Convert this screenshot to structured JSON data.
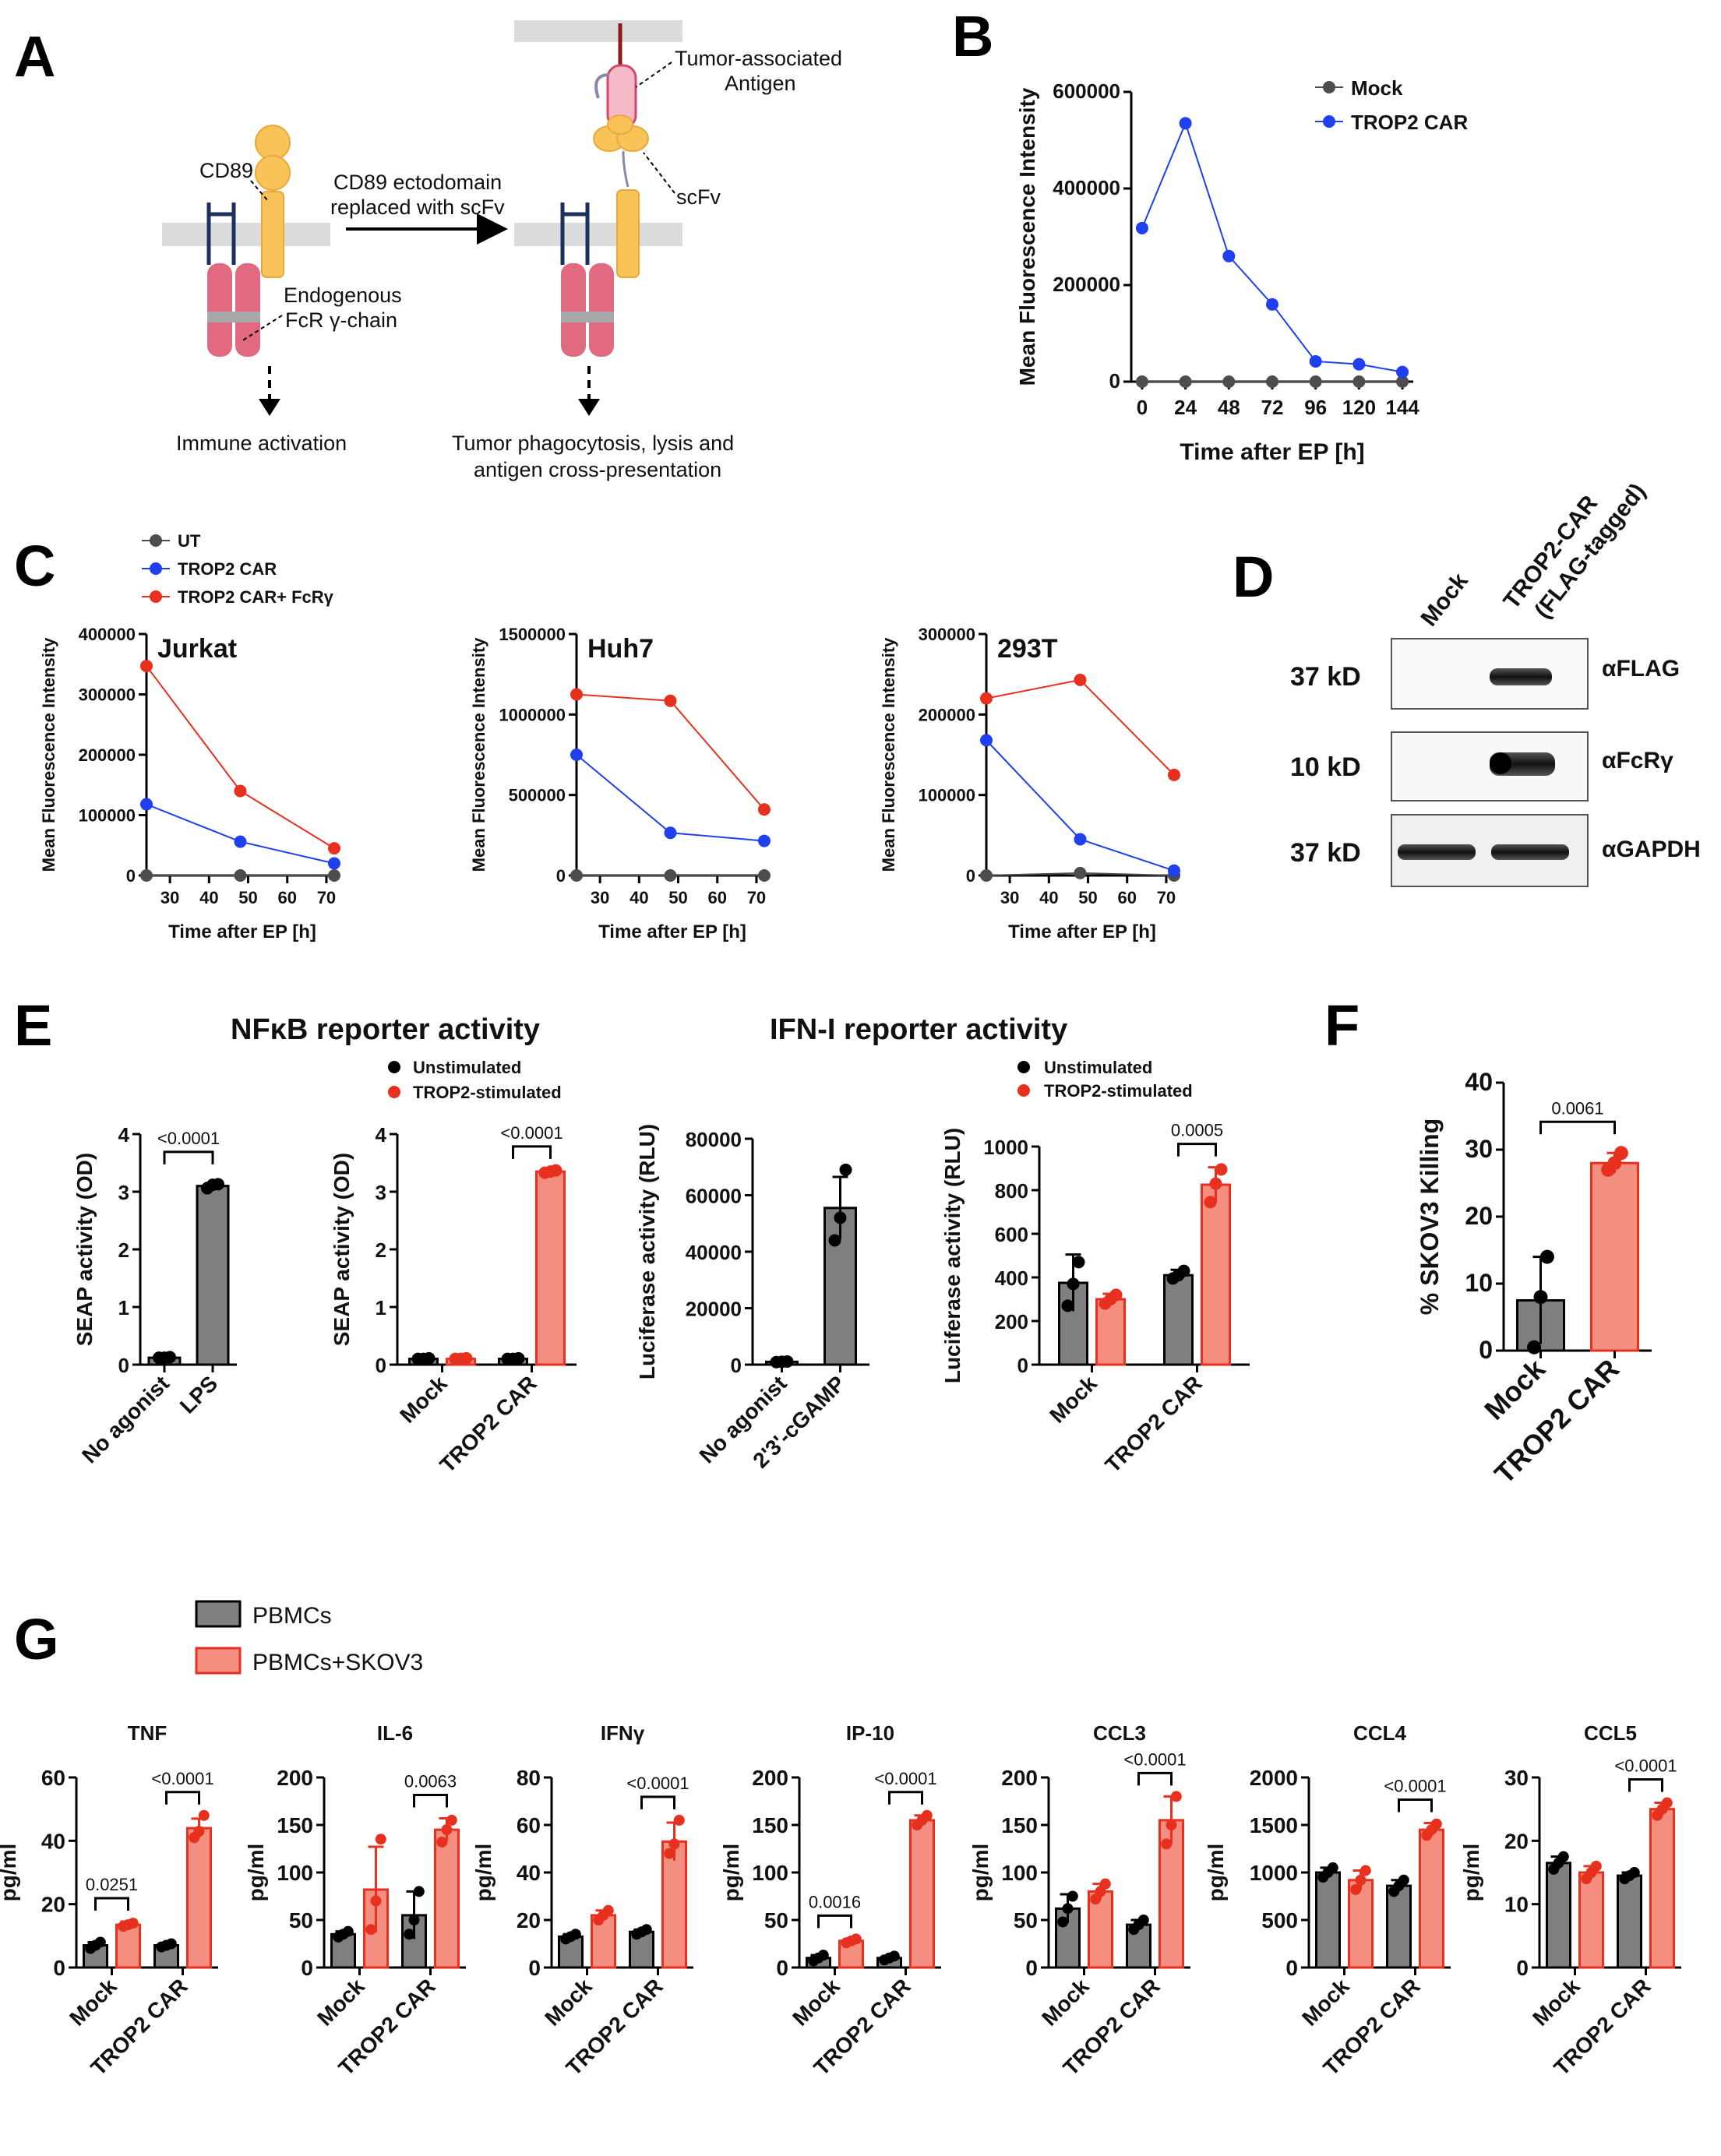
{
  "colors": {
    "mock": "#4d4d4d",
    "car": "#1f3ff0",
    "car_fc": "#e8301f",
    "grey_bar": "#7f7f7f",
    "red_bar": "#f48e80",
    "red_edge": "#e8301f",
    "ut": "#4d4d4d",
    "black": "#000000"
  },
  "panel_labels": [
    "A",
    "B",
    "C",
    "D",
    "E",
    "F",
    "G"
  ],
  "panel_a": {
    "tumor_antigen_label": "Tumor-associated\nAntigen",
    "cd89_label": "CD89",
    "scfv_label": "scFv",
    "arrow_label": "CD89 ectodomain\nreplaced with scFv",
    "fcr_label": "Endogenous\nFcR γ-chain",
    "left_outcome": "Immune activation",
    "right_outcome": "Tumor phagocytosis, lysis and\nantigen cross-presentation"
  },
  "chart_data": [
    {
      "id": "B",
      "type": "line",
      "title": "",
      "xlabel": "Time after EP [h]",
      "ylabel": "Mean Fluorescence Intensity",
      "x": [
        0,
        24,
        48,
        72,
        96,
        120,
        144
      ],
      "xticks": [
        "0",
        "24",
        "48",
        "72",
        "96",
        "120",
        "144"
      ],
      "yticks": [
        0,
        200000,
        400000,
        600000
      ],
      "ylim": [
        0,
        600000
      ],
      "series": [
        {
          "name": "Mock",
          "color_key": "mock",
          "values": [
            0,
            0,
            0,
            0,
            0,
            0,
            0
          ]
        },
        {
          "name": "TROP2 CAR",
          "color_key": "car",
          "values": [
            318000,
            535000,
            260000,
            160000,
            42000,
            36000,
            20000
          ]
        }
      ]
    },
    {
      "id": "C-Jurkat",
      "type": "line",
      "title": "Jurkat",
      "xlabel": "Time after EP [h]",
      "ylabel": "Mean Fluorescence Intensity",
      "x": [
        24,
        48,
        72
      ],
      "xlim": [
        24,
        73
      ],
      "xticks": [
        30,
        40,
        50,
        60,
        70
      ],
      "yticks": [
        0,
        100000,
        200000,
        300000,
        400000
      ],
      "ylim": [
        0,
        400000
      ],
      "series": [
        {
          "name": "UT",
          "color_key": "ut",
          "values": [
            0,
            0,
            0
          ]
        },
        {
          "name": "TROP2 CAR",
          "color_key": "car",
          "values": [
            118000,
            56000,
            20000
          ]
        },
        {
          "name": "TROP2 CAR+ FcRγ",
          "color_key": "car_fc",
          "values": [
            347000,
            140000,
            45000
          ]
        }
      ]
    },
    {
      "id": "C-Huh7",
      "type": "line",
      "title": "Huh7",
      "xlabel": "Time after EP [h]",
      "ylabel": "Mean Fluorescence Intensity",
      "x": [
        24,
        48,
        72
      ],
      "xlim": [
        24,
        73
      ],
      "xticks": [
        30,
        40,
        50,
        60,
        70
      ],
      "yticks": [
        0,
        500000,
        1000000,
        1500000
      ],
      "ylim": [
        0,
        1500000
      ],
      "series": [
        {
          "name": "UT",
          "color_key": "ut",
          "values": [
            0,
            0,
            0
          ]
        },
        {
          "name": "TROP2 CAR",
          "color_key": "car",
          "values": [
            750000,
            265000,
            215000
          ]
        },
        {
          "name": "TROP2 CAR+ FcRγ",
          "color_key": "car_fc",
          "values": [
            1125000,
            1085000,
            410000
          ]
        }
      ]
    },
    {
      "id": "C-293T",
      "type": "line",
      "title": "293T",
      "xlabel": "Time after EP [h]",
      "ylabel": "Mean Fluorescence Intensity",
      "x": [
        24,
        48,
        72
      ],
      "xlim": [
        24,
        73
      ],
      "xticks": [
        30,
        40,
        50,
        60,
        70
      ],
      "yticks": [
        0,
        100000,
        200000,
        300000
      ],
      "ylim": [
        0,
        300000
      ],
      "series": [
        {
          "name": "UT",
          "color_key": "ut",
          "values": [
            0,
            3000,
            0
          ]
        },
        {
          "name": "TROP2 CAR",
          "color_key": "car",
          "values": [
            168000,
            45000,
            6000
          ]
        },
        {
          "name": "TROP2 CAR+ FcRγ",
          "color_key": "car_fc",
          "values": [
            220000,
            243000,
            125000
          ]
        }
      ]
    },
    {
      "id": "E-NFkB-1",
      "type": "bar",
      "ylabel": "SEAP activity (OD)",
      "ylim": [
        0,
        4
      ],
      "yticks": [
        0,
        1,
        2,
        3,
        4
      ],
      "categories": [
        "No agonist",
        "LPS"
      ],
      "bars": [
        {
          "group": 0,
          "value": 0.12,
          "err": 0.02,
          "color": "grey",
          "points": [
            0.12,
            0.12,
            0.13
          ]
        },
        {
          "group": 1,
          "value": 3.1,
          "err": 0.05,
          "color": "grey",
          "points": [
            3.06,
            3.12,
            3.13
          ]
        }
      ],
      "comparisons": [
        {
          "from": 0,
          "to": 1,
          "label": "<0.0001"
        }
      ]
    },
    {
      "id": "E-NFkB-2",
      "type": "bar",
      "ylabel": "SEAP activity (OD)",
      "ylim": [
        0,
        4
      ],
      "yticks": [
        0,
        1,
        2,
        3,
        4
      ],
      "categories": [
        "Mock",
        "TROP2 CAR"
      ],
      "series": [
        "Unstimulated",
        "TROP2-stimulated"
      ],
      "bars": [
        {
          "group": 0,
          "series": 0,
          "value": 0.1,
          "err": 0.01,
          "color": "grey",
          "points": [
            0.1,
            0.1,
            0.11
          ]
        },
        {
          "group": 0,
          "series": 1,
          "value": 0.1,
          "err": 0.01,
          "color": "red",
          "points": [
            0.1,
            0.1,
            0.11
          ]
        },
        {
          "group": 1,
          "series": 0,
          "value": 0.1,
          "err": 0.01,
          "color": "grey",
          "points": [
            0.1,
            0.1,
            0.11
          ]
        },
        {
          "group": 1,
          "series": 1,
          "value": 3.35,
          "err": 0.03,
          "color": "red",
          "points": [
            3.33,
            3.35,
            3.37
          ]
        }
      ],
      "comparisons": [
        {
          "group": 1,
          "label": "<0.0001"
        }
      ]
    },
    {
      "id": "E-IFN-1",
      "type": "bar",
      "ylabel": "Luciferase activity (RLU)",
      "ylim": [
        0,
        80000
      ],
      "yticks": [
        0,
        20000,
        40000,
        60000,
        80000
      ],
      "categories": [
        "No agonist",
        "2'3'-cGAMP"
      ],
      "bars": [
        {
          "group": 0,
          "value": 1000,
          "err": 200,
          "color": "grey",
          "points": [
            900,
            1000,
            1100
          ]
        },
        {
          "group": 1,
          "value": 55500,
          "err": 11000,
          "color": "grey",
          "points": [
            44000,
            52000,
            69000
          ]
        }
      ]
    },
    {
      "id": "E-IFN-2",
      "type": "bar",
      "ylabel": "Luciferase activity (RLU)",
      "ylim": [
        0,
        1000
      ],
      "yticks": [
        0,
        200,
        400,
        600,
        800,
        1000
      ],
      "categories": [
        "Mock",
        "TROP2 CAR"
      ],
      "series": [
        "Unstimulated",
        "TROP2-stimulated"
      ],
      "bars": [
        {
          "group": 0,
          "series": 0,
          "value": 375,
          "err": 130,
          "color": "grey",
          "points": [
            270,
            370,
            470
          ]
        },
        {
          "group": 0,
          "series": 1,
          "value": 300,
          "err": 25,
          "color": "red",
          "points": [
            280,
            300,
            320
          ]
        },
        {
          "group": 1,
          "series": 0,
          "value": 410,
          "err": 25,
          "color": "grey",
          "points": [
            395,
            410,
            430
          ]
        },
        {
          "group": 1,
          "series": 1,
          "value": 825,
          "err": 80,
          "color": "red",
          "points": [
            745,
            830,
            895
          ]
        }
      ],
      "comparisons": [
        {
          "group": 1,
          "label": "0.0005"
        }
      ]
    },
    {
      "id": "F",
      "type": "bar",
      "ylabel": "% SKOV3 Killing",
      "ylim": [
        0,
        40
      ],
      "yticks": [
        0,
        10,
        20,
        30,
        40
      ],
      "categories": [
        "Mock",
        "TROP2 CAR"
      ],
      "bars": [
        {
          "group": 0,
          "value": 7.5,
          "err": 6.5,
          "color": "grey",
          "points": [
            0.5,
            8,
            14
          ]
        },
        {
          "group": 1,
          "value": 28,
          "err": 1.5,
          "color": "red",
          "points": [
            27,
            28,
            29.5
          ]
        }
      ],
      "comparisons": [
        {
          "from": 0,
          "to": 1,
          "label": "0.0061"
        }
      ]
    },
    {
      "id": "G-TNF",
      "type": "bar",
      "title": "TNF",
      "ylabel": "pg/ml",
      "ylim": [
        0,
        60
      ],
      "yticks": [
        0,
        20,
        40,
        60
      ],
      "categories": [
        "Mock",
        "TROP2 CAR"
      ],
      "bars": [
        {
          "group": 0,
          "series": 0,
          "value": 7,
          "err": 1,
          "points": [
            6,
            7,
            8
          ]
        },
        {
          "group": 0,
          "series": 1,
          "value": 13.5,
          "err": 1,
          "points": [
            13,
            13.5,
            14
          ]
        },
        {
          "group": 1,
          "series": 0,
          "value": 7,
          "err": 0.5,
          "points": [
            6.5,
            7,
            7.5
          ]
        },
        {
          "group": 1,
          "series": 1,
          "value": 44,
          "err": 3,
          "points": [
            41,
            43,
            48
          ]
        }
      ],
      "comparisons": [
        {
          "group": 0,
          "label": "0.0251"
        },
        {
          "group": 1,
          "label": "<0.0001"
        }
      ]
    },
    {
      "id": "G-IL6",
      "type": "bar",
      "title": "IL-6",
      "ylabel": "pg/ml",
      "ylim": [
        0,
        200
      ],
      "yticks": [
        0,
        50,
        100,
        150,
        200
      ],
      "categories": [
        "Mock",
        "TROP2 CAR"
      ],
      "bars": [
        {
          "group": 0,
          "series": 0,
          "value": 35,
          "err": 3,
          "points": [
            32,
            35,
            38
          ]
        },
        {
          "group": 0,
          "series": 1,
          "value": 82,
          "err": 45,
          "points": [
            40,
            70,
            135
          ]
        },
        {
          "group": 1,
          "series": 0,
          "value": 55,
          "err": 25,
          "points": [
            35,
            50,
            80
          ]
        },
        {
          "group": 1,
          "series": 1,
          "value": 145,
          "err": 12,
          "points": [
            132,
            145,
            155
          ]
        }
      ],
      "comparisons": [
        {
          "group": 1,
          "label": "0.0063"
        }
      ]
    },
    {
      "id": "G-IFNg",
      "type": "bar",
      "title": "IFNγ",
      "ylabel": "pg/ml",
      "ylim": [
        0,
        80
      ],
      "yticks": [
        0,
        20,
        40,
        60,
        80
      ],
      "categories": [
        "Mock",
        "TROP2 CAR"
      ],
      "bars": [
        {
          "group": 0,
          "series": 0,
          "value": 13,
          "err": 1,
          "points": [
            12,
            13,
            14
          ]
        },
        {
          "group": 0,
          "series": 1,
          "value": 22,
          "err": 2,
          "points": [
            20,
            22,
            24
          ]
        },
        {
          "group": 1,
          "series": 0,
          "value": 15,
          "err": 1,
          "points": [
            14,
            15,
            16
          ]
        },
        {
          "group": 1,
          "series": 1,
          "value": 53,
          "err": 8,
          "points": [
            48,
            52,
            62
          ]
        }
      ],
      "comparisons": [
        {
          "group": 1,
          "label": "<0.0001"
        }
      ]
    },
    {
      "id": "G-IP10",
      "type": "bar",
      "title": "IP-10",
      "ylabel": "pg/ml",
      "ylim": [
        0,
        200
      ],
      "yticks": [
        0,
        50,
        100,
        150,
        200
      ],
      "categories": [
        "Mock",
        "TROP2 CAR"
      ],
      "bars": [
        {
          "group": 0,
          "series": 0,
          "value": 10,
          "err": 3,
          "points": [
            7,
            10,
            13
          ]
        },
        {
          "group": 0,
          "series": 1,
          "value": 28,
          "err": 2,
          "points": [
            26,
            28,
            30
          ]
        },
        {
          "group": 1,
          "series": 0,
          "value": 10,
          "err": 2,
          "points": [
            8,
            10,
            12
          ]
        },
        {
          "group": 1,
          "series": 1,
          "value": 155,
          "err": 5,
          "points": [
            150,
            155,
            160
          ]
        }
      ],
      "comparisons": [
        {
          "group": 0,
          "label": "0.0016"
        },
        {
          "group": 1,
          "label": "<0.0001"
        }
      ]
    },
    {
      "id": "G-CCL3",
      "type": "bar",
      "title": "CCL3",
      "ylabel": "pg/ml",
      "ylim": [
        0,
        200
      ],
      "yticks": [
        0,
        50,
        100,
        150,
        200
      ],
      "categories": [
        "Mock",
        "TROP2 CAR"
      ],
      "bars": [
        {
          "group": 0,
          "series": 0,
          "value": 62,
          "err": 15,
          "points": [
            48,
            62,
            75
          ]
        },
        {
          "group": 0,
          "series": 1,
          "value": 80,
          "err": 8,
          "points": [
            72,
            80,
            88
          ]
        },
        {
          "group": 1,
          "series": 0,
          "value": 45,
          "err": 5,
          "points": [
            40,
            45,
            50
          ]
        },
        {
          "group": 1,
          "series": 1,
          "value": 155,
          "err": 25,
          "points": [
            130,
            150,
            180
          ]
        }
      ],
      "comparisons": [
        {
          "group": 1,
          "label": "<0.0001"
        }
      ]
    },
    {
      "id": "G-CCL4",
      "type": "bar",
      "title": "CCL4",
      "ylabel": "pg/ml",
      "ylim": [
        0,
        2000
      ],
      "yticks": [
        0,
        500,
        1000,
        1500,
        2000
      ],
      "categories": [
        "Mock",
        "TROP2 CAR"
      ],
      "bars": [
        {
          "group": 0,
          "series": 0,
          "value": 1000,
          "err": 50,
          "points": [
            950,
            1000,
            1050
          ]
        },
        {
          "group": 0,
          "series": 1,
          "value": 920,
          "err": 100,
          "points": [
            820,
            920,
            1020
          ]
        },
        {
          "group": 1,
          "series": 0,
          "value": 860,
          "err": 60,
          "points": [
            800,
            860,
            920
          ]
        },
        {
          "group": 1,
          "series": 1,
          "value": 1450,
          "err": 70,
          "points": [
            1390,
            1450,
            1510
          ]
        }
      ],
      "comparisons": [
        {
          "group": 1,
          "label": "<0.0001"
        }
      ]
    },
    {
      "id": "G-CCL5",
      "type": "bar",
      "title": "CCL5",
      "ylabel": "pg/ml",
      "ylim": [
        0,
        30
      ],
      "yticks": [
        0,
        10,
        20,
        30
      ],
      "categories": [
        "Mock",
        "TROP2 CAR"
      ],
      "bars": [
        {
          "group": 0,
          "series": 0,
          "value": 16.5,
          "err": 1,
          "points": [
            15.5,
            16.5,
            17.5
          ]
        },
        {
          "group": 0,
          "series": 1,
          "value": 15,
          "err": 1,
          "points": [
            14,
            15,
            16
          ]
        },
        {
          "group": 1,
          "series": 0,
          "value": 14.5,
          "err": 0.5,
          "points": [
            14,
            14.5,
            15
          ]
        },
        {
          "group": 1,
          "series": 1,
          "value": 25,
          "err": 1,
          "points": [
            24,
            25,
            26
          ]
        }
      ],
      "comparisons": [
        {
          "group": 1,
          "label": "<0.0001"
        }
      ]
    }
  ],
  "panel_c_legend": [
    "UT",
    "TROP2 CAR",
    "TROP2 CAR+ FcRγ"
  ],
  "panel_b_legend": [
    "Mock",
    "TROP2 CAR"
  ],
  "panel_d": {
    "lane_labels": [
      "Mock",
      "TROP2-CAR\n(FLAG-tagged)"
    ],
    "rows": [
      {
        "size": "37 kD",
        "antibody": "αFLAG"
      },
      {
        "size": "10 kD",
        "antibody": "αFcRγ"
      },
      {
        "size": "37 kD",
        "antibody": "αGAPDH"
      }
    ]
  },
  "panel_e": {
    "nfkb_title": "NFκB reporter activity",
    "ifn_title": "IFN-I reporter activity",
    "legend": [
      "Unstimulated",
      "TROP2-stimulated"
    ]
  },
  "panel_g_legend": [
    "PBMCs",
    "PBMCs+SKOV3"
  ]
}
